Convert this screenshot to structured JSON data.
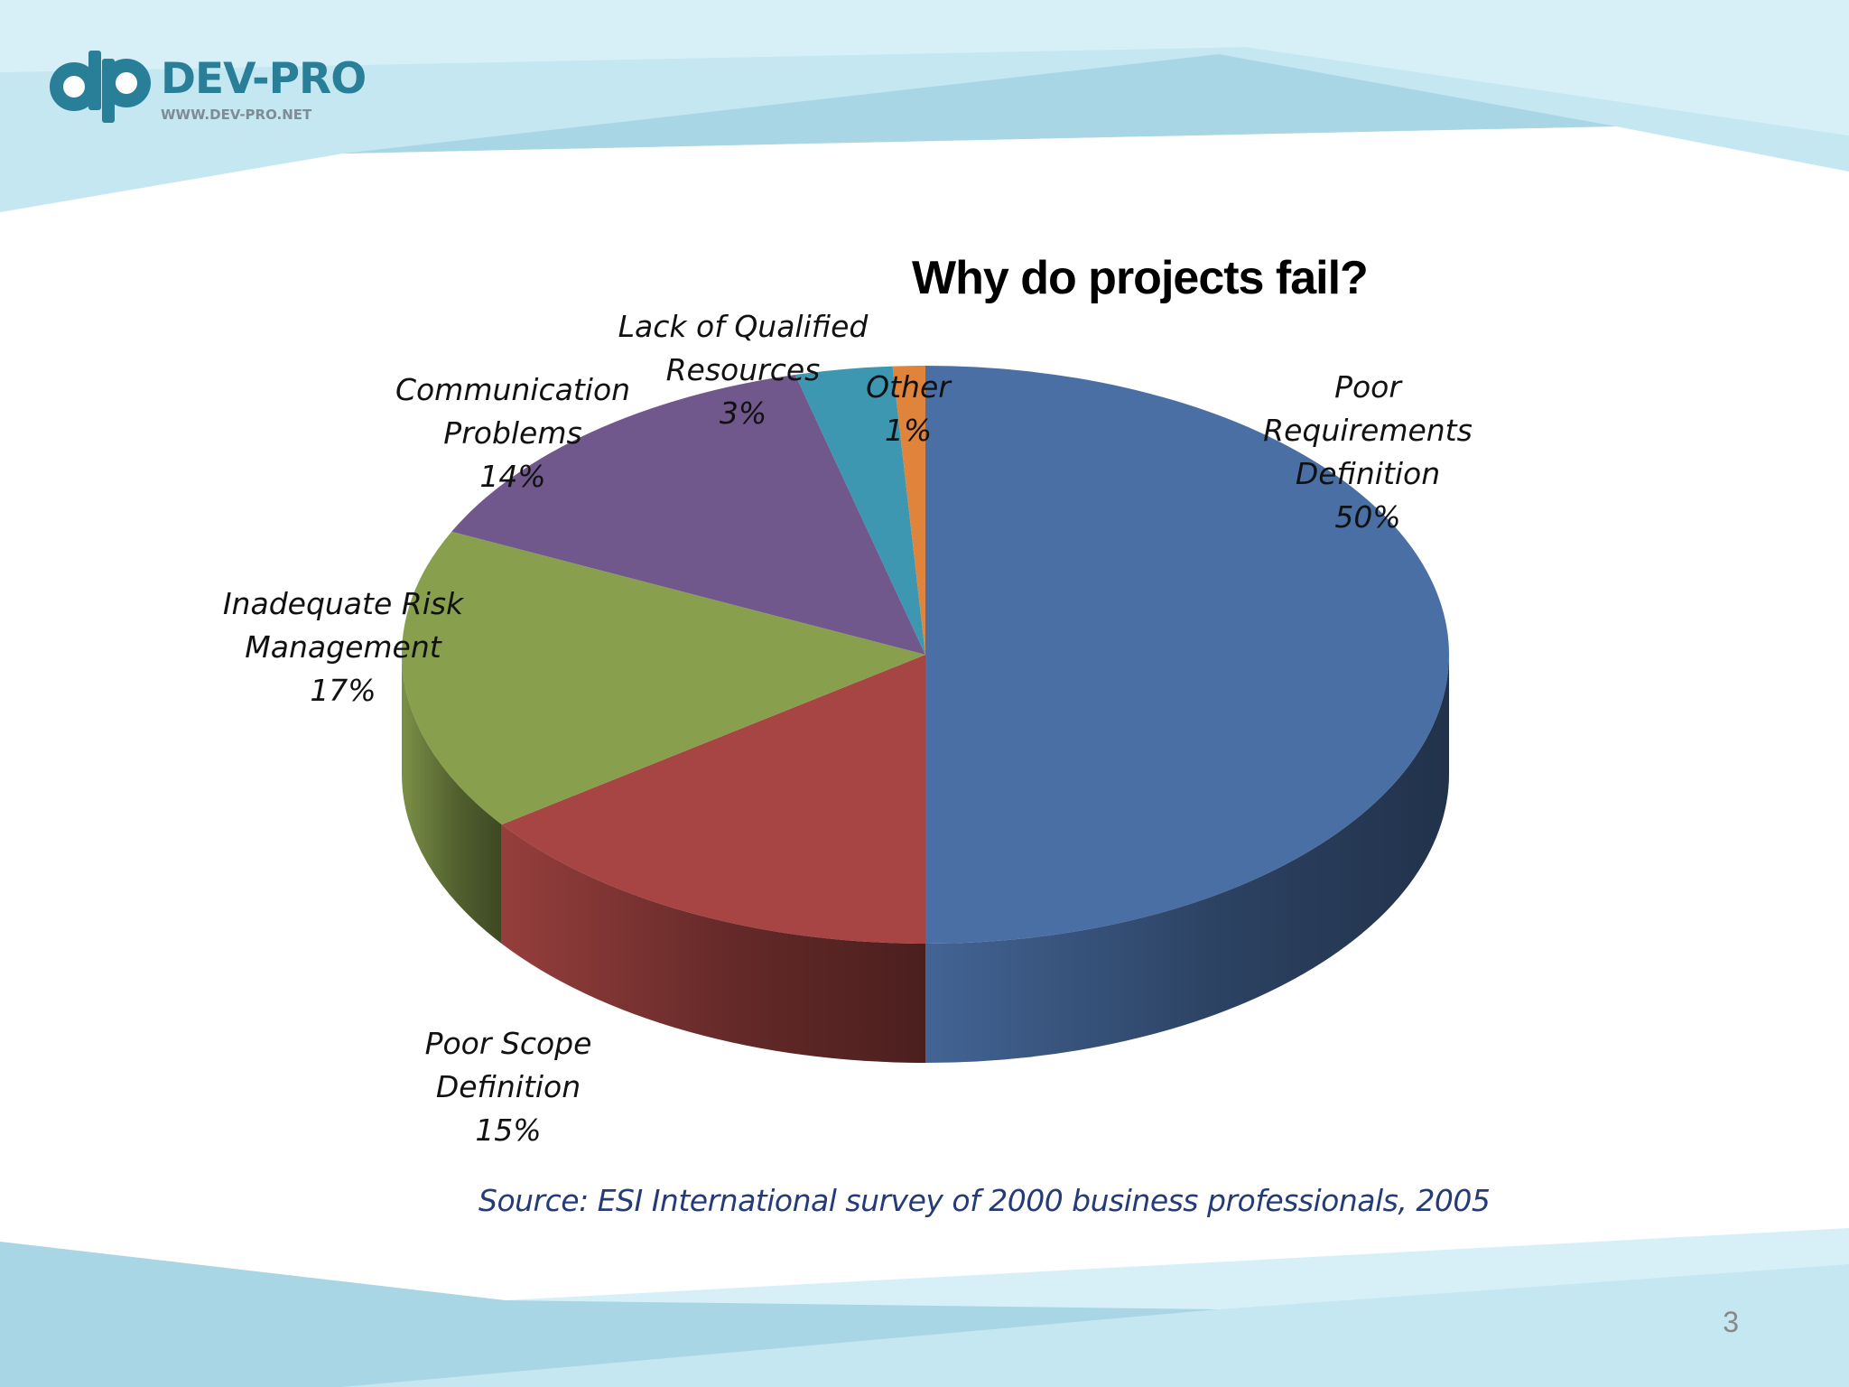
{
  "slide": {
    "brand": {
      "name": "DEV-PRO",
      "url": "WWW.DEV-PRO.NET",
      "color": "#2a7f98"
    },
    "source": "Source: ESI International survey of 2000 business professionals, 2005",
    "page_number": "3"
  },
  "chart_data": {
    "type": "pie",
    "style": "3d",
    "title": "Why do projects fail?",
    "slices": [
      {
        "name": "Poor Requirements Definition",
        "label": [
          "Poor",
          "Requirements",
          "Definition"
        ],
        "value": 50,
        "value_label": "50%",
        "color": "#4a6fa5"
      },
      {
        "name": "Poor Scope Definition",
        "label": [
          "Poor Scope",
          "Definition"
        ],
        "value": 15,
        "value_label": "15%",
        "color": "#a64543"
      },
      {
        "name": "Inadequate Risk Management",
        "label": [
          "Inadequate Risk",
          "Management"
        ],
        "value": 17,
        "value_label": "17%",
        "color": "#88a04e"
      },
      {
        "name": "Communication Problems",
        "label": [
          "Communication",
          "Problems"
        ],
        "value": 14,
        "value_label": "14%",
        "color": "#70588c"
      },
      {
        "name": "Lack of Qualified Resources",
        "label": [
          "Lack of Qualified",
          "Resources"
        ],
        "value": 3,
        "value_label": "3%",
        "color": "#3d97b1"
      },
      {
        "name": "Other",
        "label": [
          "Other"
        ],
        "value": 1,
        "value_label": "1%",
        "color": "#e0843c"
      }
    ]
  }
}
